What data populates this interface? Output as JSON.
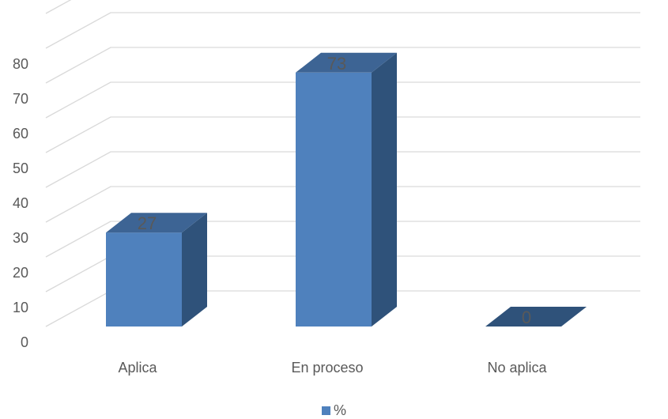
{
  "chart_data": {
    "type": "bar",
    "categories": [
      "Aplica",
      "En proceso",
      "No aplica"
    ],
    "series": [
      {
        "name": "%",
        "values": [
          27,
          73,
          0
        ]
      }
    ],
    "data_labels": [
      "27",
      "73",
      "0"
    ],
    "yticks": [
      "0",
      "10",
      "20",
      "30",
      "40",
      "50",
      "60",
      "70",
      "80"
    ],
    "ylim": [
      0,
      90
    ],
    "grid": true,
    "legend_position": "bottom",
    "style": "3d-column",
    "colors": {
      "bar_front": "#4f81bd",
      "bar_side": "#2f527a",
      "bar_top": "#3d6494",
      "grid": "#d9d9d9",
      "text": "#595959"
    }
  }
}
